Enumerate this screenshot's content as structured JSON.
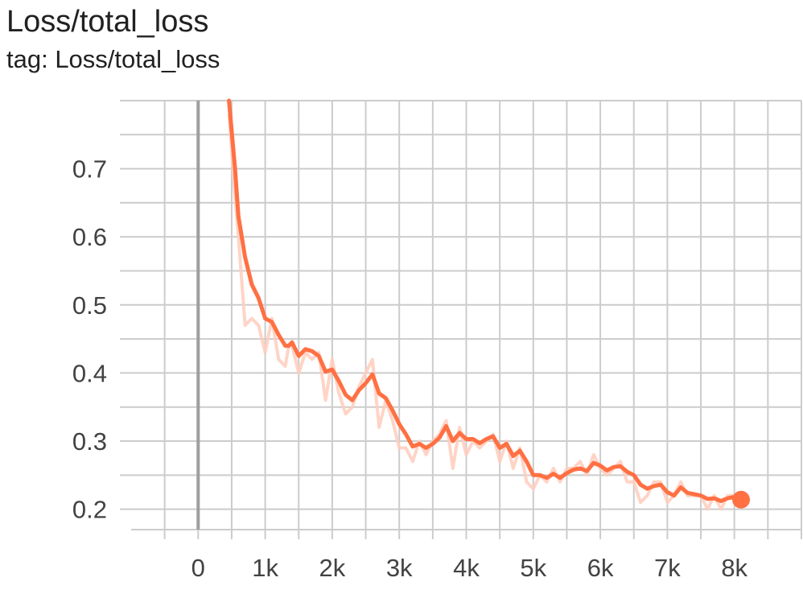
{
  "header": {
    "title": "Loss/total_loss",
    "subtitle": "tag: Loss/total_loss"
  },
  "chart_data": {
    "type": "line",
    "title": "Loss/total_loss",
    "xlabel": "",
    "ylabel": "",
    "xlim": [
      -1000,
      9000
    ],
    "ylim": [
      0.17,
      0.8
    ],
    "x_ticks": [
      0,
      1000,
      2000,
      3000,
      4000,
      5000,
      6000,
      7000,
      8000
    ],
    "x_tick_labels": [
      "0",
      "1k",
      "2k",
      "3k",
      "4k",
      "5k",
      "6k",
      "7k",
      "8k"
    ],
    "y_ticks": [
      0.2,
      0.3,
      0.4,
      0.5,
      0.6,
      0.7
    ],
    "y_tick_labels": [
      "0.2",
      "0.3",
      "0.4",
      "0.5",
      "0.6",
      "0.7"
    ],
    "grid": true,
    "colors": {
      "smoothed": "#ff7043",
      "raw": "#ffccbc",
      "zero_line": "#9e9e9e",
      "grid": "#cccccc"
    },
    "series": [
      {
        "role": "smoothed",
        "x": [
          460,
          550,
          600,
          700,
          800,
          900,
          1000,
          1100,
          1200,
          1300,
          1350,
          1400,
          1500,
          1600,
          1700,
          1800,
          1900,
          2000,
          2100,
          2200,
          2300,
          2400,
          2500,
          2600,
          2700,
          2800,
          2900,
          3000,
          3100,
          3200,
          3300,
          3400,
          3500,
          3600,
          3700,
          3800,
          3900,
          4000,
          4100,
          4200,
          4300,
          4400,
          4500,
          4600,
          4700,
          4800,
          4900,
          5000,
          5100,
          5200,
          5300,
          5400,
          5500,
          5600,
          5700,
          5800,
          5900,
          6000,
          6100,
          6200,
          6300,
          6400,
          6500,
          6600,
          6700,
          6800,
          6900,
          7000,
          7100,
          7200,
          7300,
          7400,
          7500,
          7600,
          7700,
          7800,
          7900,
          8000,
          8100
        ],
        "y": [
          0.8,
          0.7,
          0.63,
          0.57,
          0.53,
          0.51,
          0.48,
          0.475,
          0.456,
          0.44,
          0.44,
          0.445,
          0.425,
          0.435,
          0.432,
          0.425,
          0.402,
          0.405,
          0.388,
          0.368,
          0.36,
          0.375,
          0.385,
          0.398,
          0.37,
          0.363,
          0.345,
          0.325,
          0.31,
          0.292,
          0.296,
          0.29,
          0.296,
          0.305,
          0.322,
          0.3,
          0.312,
          0.303,
          0.303,
          0.297,
          0.303,
          0.307,
          0.29,
          0.296,
          0.278,
          0.286,
          0.27,
          0.25,
          0.25,
          0.246,
          0.252,
          0.246,
          0.253,
          0.258,
          0.26,
          0.256,
          0.268,
          0.264,
          0.257,
          0.262,
          0.263,
          0.255,
          0.25,
          0.236,
          0.23,
          0.234,
          0.236,
          0.225,
          0.22,
          0.232,
          0.224,
          0.222,
          0.22,
          0.215,
          0.216,
          0.212,
          0.216,
          0.218,
          0.214
        ]
      },
      {
        "role": "raw",
        "x": [
          460,
          550,
          600,
          700,
          800,
          900,
          1000,
          1100,
          1200,
          1300,
          1350,
          1400,
          1500,
          1600,
          1700,
          1800,
          1900,
          2000,
          2100,
          2200,
          2300,
          2400,
          2500,
          2600,
          2700,
          2800,
          2900,
          3000,
          3100,
          3200,
          3300,
          3400,
          3500,
          3600,
          3700,
          3800,
          3900,
          4000,
          4100,
          4200,
          4300,
          4400,
          4500,
          4600,
          4700,
          4800,
          4900,
          5000,
          5100,
          5200,
          5300,
          5400,
          5500,
          5600,
          5700,
          5800,
          5900,
          6000,
          6100,
          6200,
          6300,
          6400,
          6500,
          6600,
          6700,
          6800,
          6900,
          7000,
          7100,
          7200,
          7300,
          7400,
          7500,
          7600,
          7700,
          7800,
          7900,
          8000,
          8100
        ],
        "y": [
          0.78,
          0.66,
          0.6,
          0.47,
          0.48,
          0.47,
          0.43,
          0.48,
          0.42,
          0.41,
          0.44,
          0.44,
          0.4,
          0.43,
          0.42,
          0.43,
          0.36,
          0.42,
          0.37,
          0.34,
          0.35,
          0.38,
          0.4,
          0.42,
          0.32,
          0.36,
          0.33,
          0.29,
          0.29,
          0.27,
          0.3,
          0.28,
          0.3,
          0.31,
          0.33,
          0.26,
          0.32,
          0.28,
          0.3,
          0.29,
          0.3,
          0.31,
          0.27,
          0.3,
          0.26,
          0.29,
          0.24,
          0.23,
          0.25,
          0.24,
          0.26,
          0.24,
          0.26,
          0.26,
          0.27,
          0.25,
          0.28,
          0.26,
          0.25,
          0.26,
          0.27,
          0.24,
          0.24,
          0.21,
          0.22,
          0.24,
          0.24,
          0.21,
          0.22,
          0.24,
          0.22,
          0.22,
          0.22,
          0.2,
          0.22,
          0.2,
          0.22,
          0.22,
          0.21
        ]
      }
    ]
  }
}
